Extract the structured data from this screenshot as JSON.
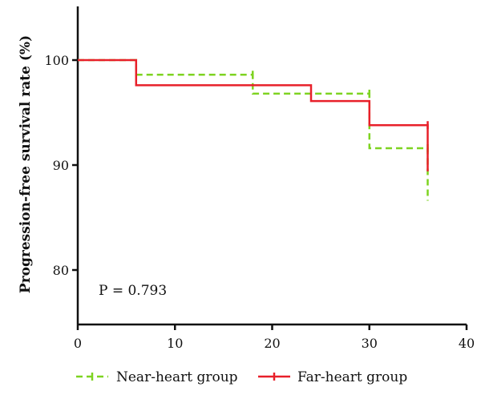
{
  "chart_data": {
    "type": "line",
    "step": true,
    "ylabel": "Progression-free survival rate (%)",
    "xlabel": "",
    "xlim": [
      0,
      40
    ],
    "ylim": [
      75,
      105
    ],
    "x_ticks": [
      "0",
      "10",
      "20",
      "30",
      "40"
    ],
    "y_ticks": [
      "80",
      "90",
      "100"
    ],
    "annotation": "P = 0.793",
    "legend_position": "bottom",
    "series": [
      {
        "name": "Near-heart group",
        "color": "#7ed321",
        "dash": "dashed",
        "points": [
          [
            0,
            100
          ],
          [
            6,
            100
          ],
          [
            6,
            98.6
          ],
          [
            18,
            98.6
          ],
          [
            18,
            96.8
          ],
          [
            30,
            96.8
          ],
          [
            30,
            91.6
          ],
          [
            36,
            91.6
          ],
          [
            36,
            86.6
          ]
        ],
        "censor_x": [
          18,
          30,
          36
        ]
      },
      {
        "name": "Far-heart group",
        "color": "#e8202a",
        "dash": "solid",
        "points": [
          [
            0,
            100
          ],
          [
            6,
            100
          ],
          [
            6,
            97.6
          ],
          [
            24,
            97.6
          ],
          [
            24,
            96.1
          ],
          [
            30,
            96.1
          ],
          [
            30,
            93.8
          ],
          [
            36,
            93.8
          ],
          [
            36,
            89.4
          ]
        ],
        "censor_x": [
          36
        ]
      }
    ]
  }
}
